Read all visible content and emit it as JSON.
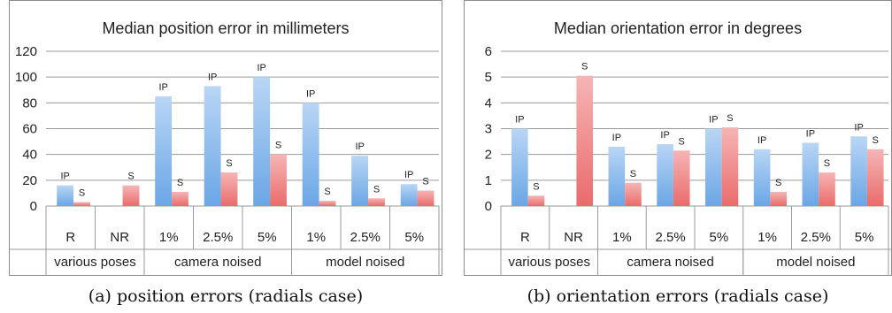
{
  "chart_data": [
    {
      "type": "bar",
      "title": "Median position error in millimeters",
      "ylim": [
        0,
        120
      ],
      "yticks": [
        0,
        20,
        40,
        60,
        80,
        100,
        120
      ],
      "grid": true,
      "categories": [
        "R",
        "NR",
        "1%",
        "2.5%",
        "5%",
        "1%",
        "2.5%",
        "5%"
      ],
      "groups": [
        {
          "label": "various poses",
          "span": 2
        },
        {
          "label": "camera noised",
          "span": 3
        },
        {
          "label": "model noised",
          "span": 3
        }
      ],
      "series": [
        {
          "name": "IP",
          "color": "#6aa6e6",
          "values": [
            16,
            null,
            85,
            93,
            100,
            80,
            39,
            17
          ]
        },
        {
          "name": "S",
          "color": "#ea6b6b",
          "values": [
            3,
            16,
            11,
            26,
            40,
            4,
            6,
            12
          ]
        }
      ],
      "caption": "(a) position errors (radials case)"
    },
    {
      "type": "bar",
      "title": "Median orientation error in degrees",
      "ylim": [
        0,
        6
      ],
      "yticks": [
        0,
        1,
        2,
        3,
        4,
        5,
        6
      ],
      "grid": true,
      "categories": [
        "R",
        "NR",
        "1%",
        "2.5%",
        "5%",
        "1%",
        "2.5%",
        "5%"
      ],
      "groups": [
        {
          "label": "various poses",
          "span": 2
        },
        {
          "label": "camera noised",
          "span": 3
        },
        {
          "label": "model noised",
          "span": 3
        }
      ],
      "series": [
        {
          "name": "IP",
          "color": "#6aa6e6",
          "values": [
            3.0,
            null,
            2.3,
            2.4,
            3.0,
            2.2,
            2.45,
            2.7
          ]
        },
        {
          "name": "S",
          "color": "#ea6b6b",
          "values": [
            0.4,
            5.05,
            0.9,
            2.15,
            3.05,
            0.55,
            1.3,
            2.2
          ]
        }
      ],
      "caption": "(b) orientation errors (radials case)"
    }
  ]
}
